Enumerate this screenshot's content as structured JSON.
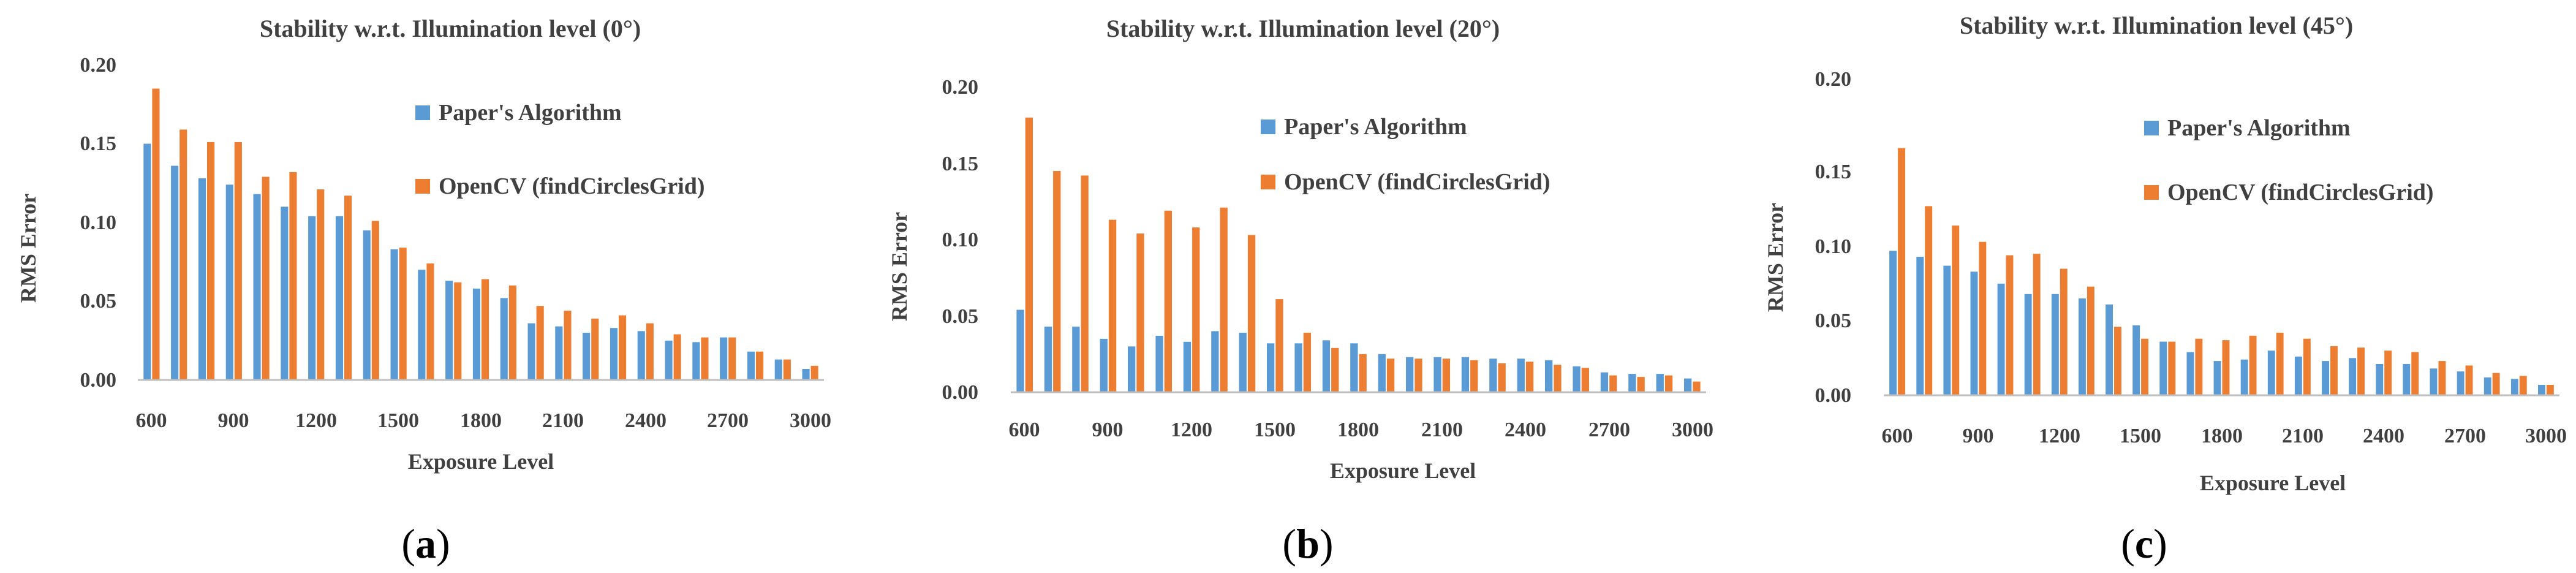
{
  "colors": {
    "paper": "#5b9bd5",
    "opencv": "#ed7d31",
    "axis": "#bfbfbf",
    "text": "#404040"
  },
  "chart_data": [
    {
      "type": "bar",
      "panel": "a",
      "title": "Stability w.r.t. Illumination level (0°)",
      "xlabel": "Exposure Level",
      "ylabel": "RMS Error",
      "ylim": [
        0,
        0.2
      ],
      "yticks": [
        "0.00",
        "0.05",
        "0.10",
        "0.15",
        "0.20"
      ],
      "categories": [
        600,
        700,
        800,
        900,
        1000,
        1100,
        1200,
        1300,
        1400,
        1500,
        1600,
        1700,
        1800,
        1900,
        2000,
        2100,
        2200,
        2300,
        2400,
        2500,
        2600,
        2700,
        2800,
        2900,
        3000
      ],
      "xtick_labels": [
        "600",
        "900",
        "1200",
        "1500",
        "1800",
        "2100",
        "2400",
        "2700",
        "3000"
      ],
      "series": [
        {
          "name": "Paper's Algorithm",
          "values": [
            0.15,
            0.136,
            0.128,
            0.124,
            0.118,
            0.11,
            0.104,
            0.104,
            0.095,
            0.083,
            0.07,
            0.063,
            0.058,
            0.052,
            0.036,
            0.034,
            0.03,
            0.033,
            0.031,
            0.025,
            0.024,
            0.027,
            0.018,
            0.013,
            0.007
          ]
        },
        {
          "name": "OpenCV (findCirclesGrid)",
          "values": [
            0.185,
            0.159,
            0.151,
            0.151,
            0.129,
            0.132,
            0.121,
            0.117,
            0.101,
            0.084,
            0.074,
            0.062,
            0.064,
            0.06,
            0.047,
            0.044,
            0.039,
            0.041,
            0.036,
            0.029,
            0.027,
            0.027,
            0.018,
            0.013,
            0.009
          ]
        }
      ],
      "caption": "a"
    },
    {
      "type": "bar",
      "panel": "b",
      "title": "Stability w.r.t. Illumination level (20°)",
      "xlabel": "Exposure Level",
      "ylabel": "RMS Error",
      "ylim": [
        0,
        0.2
      ],
      "yticks": [
        "0.00",
        "0.05",
        "0.10",
        "0.15",
        "0.20"
      ],
      "categories": [
        600,
        700,
        800,
        900,
        1000,
        1100,
        1200,
        1300,
        1400,
        1500,
        1600,
        1700,
        1800,
        1900,
        2000,
        2100,
        2200,
        2300,
        2400,
        2500,
        2600,
        2700,
        2800,
        2900,
        3000
      ],
      "xtick_labels": [
        "600",
        "900",
        "1200",
        "1500",
        "1800",
        "2100",
        "2400",
        "2700",
        "3000"
      ],
      "series": [
        {
          "name": "Paper's Algorithm",
          "values": [
            0.054,
            0.043,
            0.043,
            0.035,
            0.03,
            0.037,
            0.033,
            0.04,
            0.039,
            0.032,
            0.032,
            0.034,
            0.032,
            0.025,
            0.023,
            0.023,
            0.023,
            0.022,
            0.022,
            0.021,
            0.017,
            0.013,
            0.012,
            0.012,
            0.009
          ]
        },
        {
          "name": "OpenCV (findCirclesGrid)",
          "values": [
            0.18,
            0.145,
            0.142,
            0.113,
            0.104,
            0.119,
            0.108,
            0.121,
            0.103,
            0.061,
            0.039,
            0.029,
            0.025,
            0.022,
            0.022,
            0.022,
            0.021,
            0.019,
            0.02,
            0.018,
            0.016,
            0.011,
            0.01,
            0.011,
            0.007
          ]
        }
      ],
      "caption": "b"
    },
    {
      "type": "bar",
      "panel": "c",
      "title": "Stability w.r.t. Illumination level (45°)",
      "xlabel": "Exposure Level",
      "ylabel": "RMS Error",
      "ylim": [
        0,
        0.2
      ],
      "yticks": [
        "0.00",
        "0.05",
        "0.10",
        "0.15",
        "0.20"
      ],
      "categories": [
        600,
        700,
        800,
        900,
        1000,
        1100,
        1200,
        1300,
        1400,
        1500,
        1600,
        1700,
        1800,
        1900,
        2000,
        2100,
        2200,
        2300,
        2400,
        2500,
        2600,
        2700,
        2800,
        2900,
        3000
      ],
      "xtick_labels": [
        "600",
        "900",
        "1200",
        "1500",
        "1800",
        "2100",
        "2400",
        "2700",
        "3000"
      ],
      "series": [
        {
          "name": "Paper's Algorithm",
          "values": [
            0.097,
            0.093,
            0.087,
            0.083,
            0.075,
            0.068,
            0.068,
            0.065,
            0.061,
            0.047,
            0.036,
            0.029,
            0.023,
            0.024,
            0.03,
            0.026,
            0.023,
            0.025,
            0.021,
            0.021,
            0.018,
            0.016,
            0.012,
            0.011,
            0.007
          ]
        },
        {
          "name": "OpenCV (findCirclesGrid)",
          "values": [
            0.166,
            0.127,
            0.114,
            0.103,
            0.094,
            0.095,
            0.085,
            0.073,
            0.046,
            0.038,
            0.036,
            0.038,
            0.037,
            0.04,
            0.042,
            0.038,
            0.033,
            0.032,
            0.03,
            0.029,
            0.023,
            0.02,
            0.015,
            0.013,
            0.007
          ]
        }
      ],
      "caption": "c"
    }
  ]
}
